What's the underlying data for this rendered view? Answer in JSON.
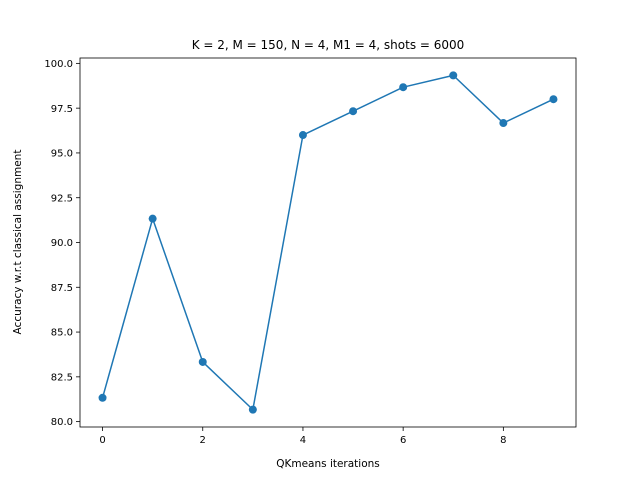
{
  "chart_data": {
    "type": "line",
    "title": "K = 2, M = 150, N = 4, M1 = 4, shots = 6000",
    "xlabel": "QKmeans iterations",
    "ylabel": "Accuracy w.r.t classical assignment",
    "x": [
      0,
      1,
      2,
      3,
      4,
      5,
      6,
      7,
      8,
      9
    ],
    "series": [
      {
        "values": [
          81.33,
          91.33,
          83.33,
          80.67,
          96.0,
          97.33,
          98.67,
          99.33,
          96.67,
          98.0
        ],
        "color": "#1f77b4",
        "marker": "circle"
      }
    ],
    "xlim": [
      -0.45,
      9.45
    ],
    "ylim": [
      79.7,
      100.3
    ],
    "xticks": [
      0,
      2,
      4,
      6,
      8
    ],
    "xtick_labels": [
      "0",
      "2",
      "4",
      "6",
      "8"
    ],
    "yticks": [
      80.0,
      82.5,
      85.0,
      87.5,
      90.0,
      92.5,
      95.0,
      97.5,
      100.0
    ],
    "ytick_labels": [
      "80.0",
      "82.5",
      "85.0",
      "87.5",
      "90.0",
      "92.5",
      "95.0",
      "97.5",
      "100.0"
    ],
    "grid": false,
    "legend": false
  }
}
